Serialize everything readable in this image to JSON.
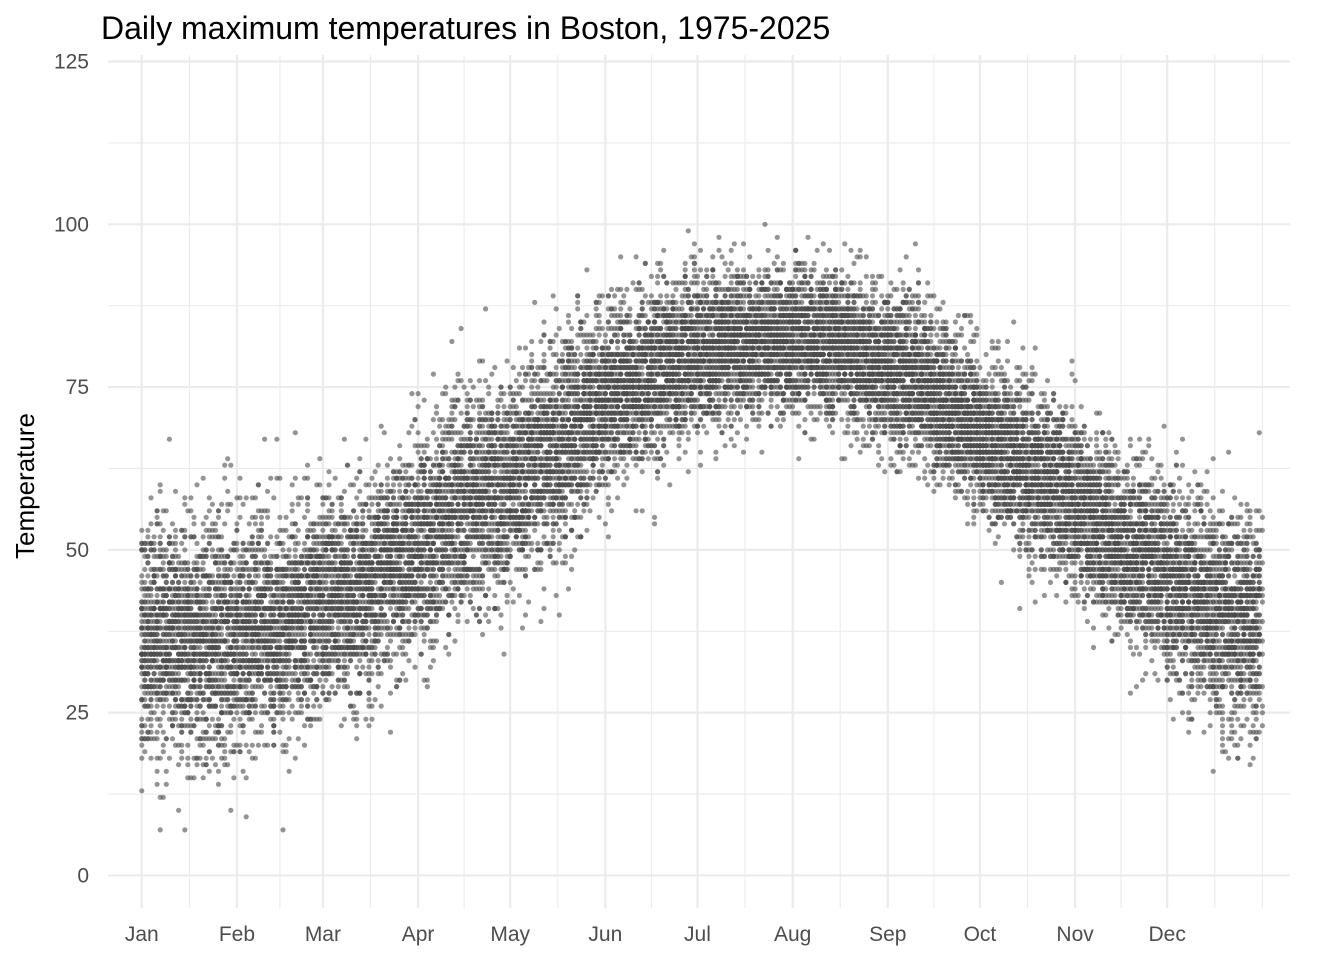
{
  "chart_data": {
    "type": "scatter",
    "title": "Daily maximum temperatures in Boston, 1975-2025",
    "xlabel": "",
    "ylabel": "Temperature",
    "x_axis": {
      "unit": "day of year",
      "range": [
        -10,
        375
      ],
      "ticks": [
        {
          "day": 1,
          "label": "Jan"
        },
        {
          "day": 32,
          "label": "Feb"
        },
        {
          "day": 60,
          "label": "Mar"
        },
        {
          "day": 91,
          "label": "Apr"
        },
        {
          "day": 121,
          "label": "May"
        },
        {
          "day": 152,
          "label": "Jun"
        },
        {
          "day": 182,
          "label": "Jul"
        },
        {
          "day": 213,
          "label": "Aug"
        },
        {
          "day": 244,
          "label": "Sep"
        },
        {
          "day": 274,
          "label": "Oct"
        },
        {
          "day": 305,
          "label": "Nov"
        },
        {
          "day": 335,
          "label": "Dec"
        }
      ],
      "minor_ticks": [
        16.5,
        46,
        75.5,
        106,
        136.5,
        167,
        197.5,
        228.5,
        259,
        289.5,
        320,
        350.5,
        366
      ]
    },
    "y_axis": {
      "range": [
        -5,
        126
      ],
      "ticks": [
        0,
        25,
        50,
        75,
        100,
        125
      ]
    },
    "grid": true,
    "point_color": "#4d4d4d",
    "point_alpha": 0.6,
    "seasonal_profile": {
      "day": [
        1,
        15,
        32,
        46,
        60,
        75,
        91,
        106,
        121,
        136,
        152,
        167,
        182,
        197,
        213,
        228,
        244,
        259,
        274,
        289,
        305,
        320,
        335,
        350,
        366
      ],
      "mean_max": [
        37,
        36,
        37,
        39,
        41,
        45,
        51,
        56,
        60,
        66,
        73,
        77,
        80,
        82,
        82,
        81,
        78,
        74,
        68,
        63,
        57,
        51,
        46,
        41,
        38
      ],
      "spread": [
        8,
        9,
        8.5,
        8,
        8,
        8,
        8,
        8,
        8,
        8,
        7,
        6.5,
        6,
        5.5,
        5.5,
        5.5,
        6,
        6,
        6,
        6.5,
        6.5,
        7,
        7.5,
        8,
        8
      ]
    },
    "years_observed": 51,
    "points_per_day": 51,
    "record_range": {
      "min": 7,
      "max": 102
    }
  }
}
